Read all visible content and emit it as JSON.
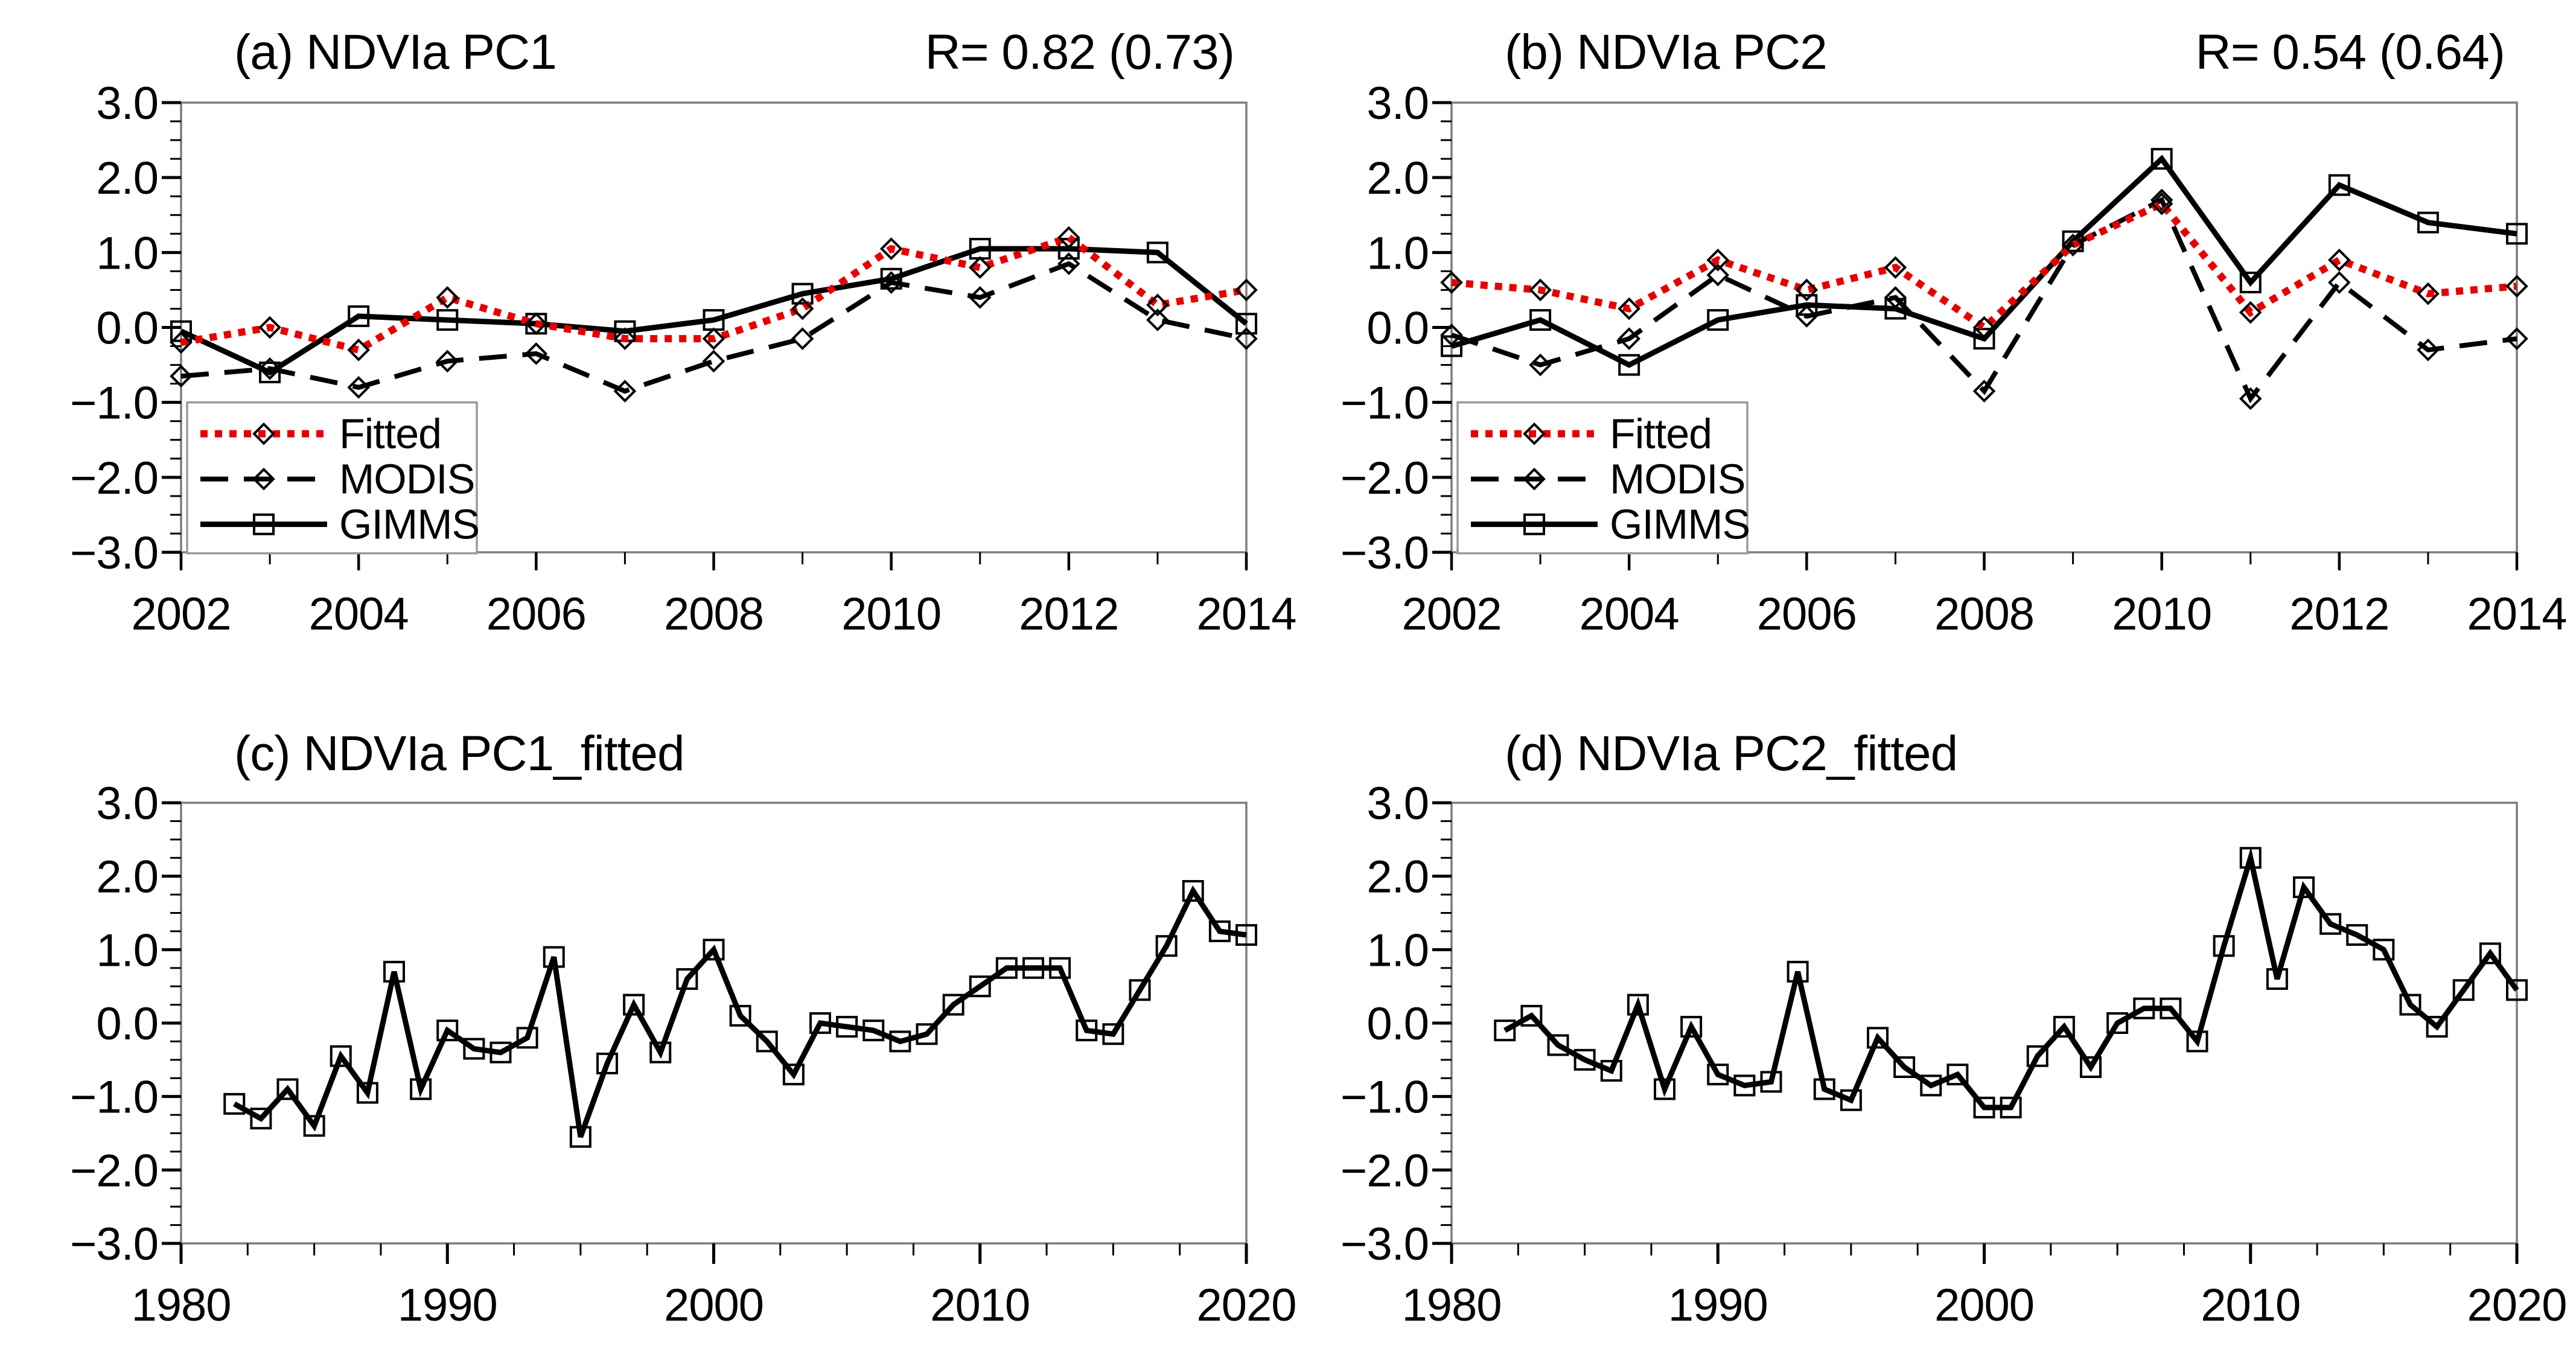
{
  "figure": {
    "background": "#ffffff",
    "colors": {
      "red": "#e60000",
      "black": "#000000",
      "axis_frame": "#7c7c7c",
      "tick": "#000000",
      "legend_border": "#9a9a9a"
    },
    "y_axis": {
      "tick_labels": [
        "3.0",
        "2.0",
        "1.0",
        "0.0",
        "−1.0",
        "−2.0",
        "−3.0"
      ],
      "tick_values": [
        3,
        2,
        1,
        0,
        -1,
        -2,
        -3
      ],
      "min": -3,
      "max": 3,
      "minor_step": 0.25
    }
  },
  "legend": {
    "labels": [
      "Fitted",
      "MODIS",
      "GIMMS"
    ]
  },
  "chart_data": [
    {
      "panel": "a",
      "type": "line",
      "title": "(a) NDVIa PC1",
      "annotation": "R= 0.82 (0.73)",
      "xlim": [
        2002,
        2014
      ],
      "xtick_step": 1,
      "xtick_labels": [
        "2002",
        "2004",
        "2006",
        "2008",
        "2010",
        "2012",
        "2014"
      ],
      "ylim": [
        -3,
        3
      ],
      "show_legend": true,
      "x": [
        2002,
        2003,
        2004,
        2005,
        2006,
        2007,
        2008,
        2009,
        2010,
        2011,
        2012,
        2013,
        2014
      ],
      "series": [
        {
          "name": "Fitted",
          "color": "#e60000",
          "line": "dotted",
          "marker": "diamond",
          "values": [
            -0.2,
            0.0,
            -0.3,
            0.4,
            0.05,
            -0.15,
            -0.15,
            0.25,
            1.05,
            0.8,
            1.2,
            0.3,
            0.5
          ]
        },
        {
          "name": "MODIS",
          "color": "#000000",
          "line": "dashed",
          "marker": "diamond",
          "values": [
            -0.65,
            -0.55,
            -0.8,
            -0.45,
            -0.35,
            -0.85,
            -0.45,
            -0.15,
            0.6,
            0.4,
            0.85,
            0.1,
            -0.15
          ]
        },
        {
          "name": "GIMMS",
          "color": "#000000",
          "line": "solid",
          "marker": "square",
          "values": [
            -0.05,
            -0.6,
            0.15,
            0.1,
            0.05,
            -0.05,
            0.1,
            0.45,
            0.65,
            1.05,
            1.05,
            1.0,
            0.05
          ]
        }
      ]
    },
    {
      "panel": "b",
      "type": "line",
      "title": "(b) NDVIa PC2",
      "annotation": "R= 0.54 (0.64)",
      "xlim": [
        2002,
        2014
      ],
      "xtick_step": 1,
      "xtick_labels": [
        "2002",
        "2004",
        "2006",
        "2008",
        "2010",
        "2012",
        "2014"
      ],
      "ylim": [
        -3,
        3
      ],
      "show_legend": true,
      "x": [
        2002,
        2003,
        2004,
        2005,
        2006,
        2007,
        2008,
        2009,
        2010,
        2011,
        2012,
        2013,
        2014
      ],
      "series": [
        {
          "name": "Fitted",
          "color": "#e60000",
          "line": "dotted",
          "marker": "diamond",
          "values": [
            0.6,
            0.5,
            0.25,
            0.9,
            0.5,
            0.8,
            0.0,
            1.1,
            1.65,
            0.2,
            0.9,
            0.45,
            0.55
          ]
        },
        {
          "name": "MODIS",
          "color": "#000000",
          "line": "dashed",
          "marker": "diamond",
          "values": [
            -0.1,
            -0.5,
            -0.15,
            0.7,
            0.15,
            0.4,
            -0.85,
            1.1,
            1.7,
            -0.95,
            0.6,
            -0.3,
            -0.15
          ]
        },
        {
          "name": "GIMMS",
          "color": "#000000",
          "line": "solid",
          "marker": "square",
          "values": [
            -0.25,
            0.1,
            -0.5,
            0.1,
            0.3,
            0.25,
            -0.15,
            1.15,
            2.25,
            0.6,
            1.9,
            1.4,
            1.25
          ]
        }
      ]
    },
    {
      "panel": "c",
      "type": "line",
      "title": "(c) NDVIa PC1_fitted",
      "annotation": null,
      "xlim": [
        1980,
        2020
      ],
      "xtick_step": 10,
      "minor_tick_step": 2.5,
      "xtick_labels": [
        "1980",
        "1990",
        "2000",
        "2010",
        "2020"
      ],
      "ylim": [
        -3,
        3
      ],
      "show_legend": false,
      "x": [
        1982,
        1983,
        1984,
        1985,
        1986,
        1987,
        1988,
        1989,
        1990,
        1991,
        1992,
        1993,
        1994,
        1995,
        1996,
        1997,
        1998,
        1999,
        2000,
        2001,
        2002,
        2003,
        2004,
        2005,
        2006,
        2007,
        2008,
        2009,
        2010,
        2011,
        2012,
        2013,
        2014,
        2015,
        2016,
        2017,
        2018,
        2019,
        2020
      ],
      "series": [
        {
          "name": "NDVIa PC1_fitted",
          "color": "#000000",
          "line": "solid",
          "marker": "square",
          "values": [
            -1.1,
            -1.3,
            -0.9,
            -1.4,
            -0.45,
            -0.95,
            0.7,
            -0.9,
            -0.1,
            -0.35,
            -0.4,
            -0.2,
            0.9,
            -1.55,
            -0.55,
            0.25,
            -0.4,
            0.6,
            1.0,
            0.1,
            -0.25,
            -0.7,
            0.0,
            -0.05,
            -0.1,
            -0.25,
            -0.15,
            0.25,
            0.5,
            0.75,
            0.75,
            0.75,
            -0.1,
            -0.15,
            0.45,
            1.05,
            1.8,
            1.25,
            1.2
          ]
        }
      ]
    },
    {
      "panel": "d",
      "type": "line",
      "title": "(d) NDVIa PC2_fitted",
      "annotation": null,
      "xlim": [
        1980,
        2020
      ],
      "xtick_step": 10,
      "minor_tick_step": 2.5,
      "xtick_labels": [
        "1980",
        "1990",
        "2000",
        "2010",
        "2020"
      ],
      "ylim": [
        -3,
        3
      ],
      "show_legend": false,
      "x": [
        1982,
        1983,
        1984,
        1985,
        1986,
        1987,
        1988,
        1989,
        1990,
        1991,
        1992,
        1993,
        1994,
        1995,
        1996,
        1997,
        1998,
        1999,
        2000,
        2001,
        2002,
        2003,
        2004,
        2005,
        2006,
        2007,
        2008,
        2009,
        2010,
        2011,
        2012,
        2013,
        2014,
        2015,
        2016,
        2017,
        2018,
        2019,
        2020
      ],
      "series": [
        {
          "name": "NDVIa PC2_fitted",
          "color": "#000000",
          "line": "solid",
          "marker": "square",
          "values": [
            -0.1,
            0.1,
            -0.3,
            -0.5,
            -0.65,
            0.25,
            -0.9,
            -0.05,
            -0.7,
            -0.85,
            -0.8,
            0.7,
            -0.9,
            -1.05,
            -0.2,
            -0.6,
            -0.85,
            -0.7,
            -1.15,
            -1.15,
            -0.45,
            -0.05,
            -0.6,
            0.0,
            0.2,
            0.2,
            -0.25,
            1.05,
            2.25,
            0.6,
            1.85,
            1.35,
            1.2,
            1.0,
            0.25,
            -0.05,
            0.45,
            0.95,
            0.45
          ]
        }
      ]
    }
  ]
}
